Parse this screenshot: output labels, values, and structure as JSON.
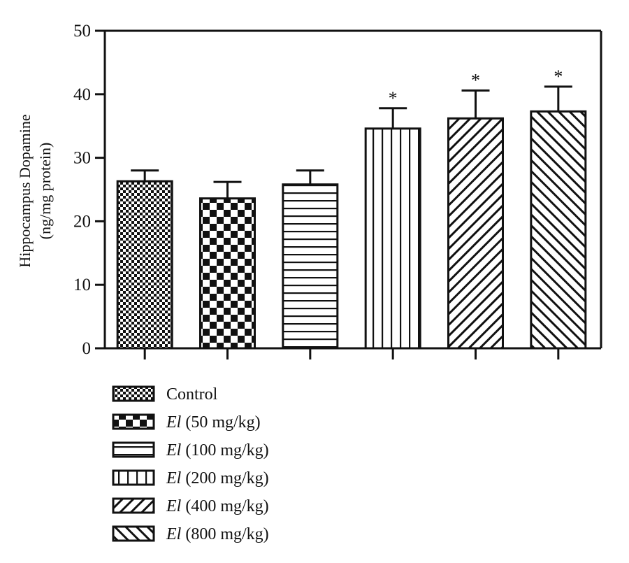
{
  "chart_data": {
    "type": "bar",
    "title": "",
    "xlabel": "",
    "ylabel": [
      "Hippocampus Dopamine",
      "(ng/mg protein)"
    ],
    "ylim": [
      0,
      50
    ],
    "yticks": [
      0,
      10,
      20,
      30,
      40,
      50
    ],
    "grid": false,
    "legend_position": "bottom-left",
    "categories": [
      "Control",
      "El (50 mg/kg)",
      "El (100 mg/kg)",
      "El (200 mg/kg)",
      "El (400 mg/kg)",
      "El (800 mg/kg)"
    ],
    "values": [
      26.3,
      23.6,
      25.8,
      34.6,
      36.2,
      37.3
    ],
    "error_upper": [
      1.7,
      2.6,
      2.2,
      3.2,
      4.4,
      3.9
    ],
    "significance": [
      "",
      "",
      "",
      "*",
      "*",
      "*"
    ],
    "patterns": [
      "fine-checker",
      "coarse-checker",
      "horizontal-lines",
      "vertical-lines",
      "diagonal-forward",
      "diagonal-backward"
    ],
    "legend": [
      {
        "prefix": "",
        "text": "Control"
      },
      {
        "prefix": "El",
        "text": " (50 mg/kg)"
      },
      {
        "prefix": "El",
        "text": " (100 mg/kg)"
      },
      {
        "prefix": "El",
        "text": " (200 mg/kg)"
      },
      {
        "prefix": "El",
        "text": " (400 mg/kg)"
      },
      {
        "prefix": "El",
        "text": " (800 mg/kg)"
      }
    ]
  }
}
